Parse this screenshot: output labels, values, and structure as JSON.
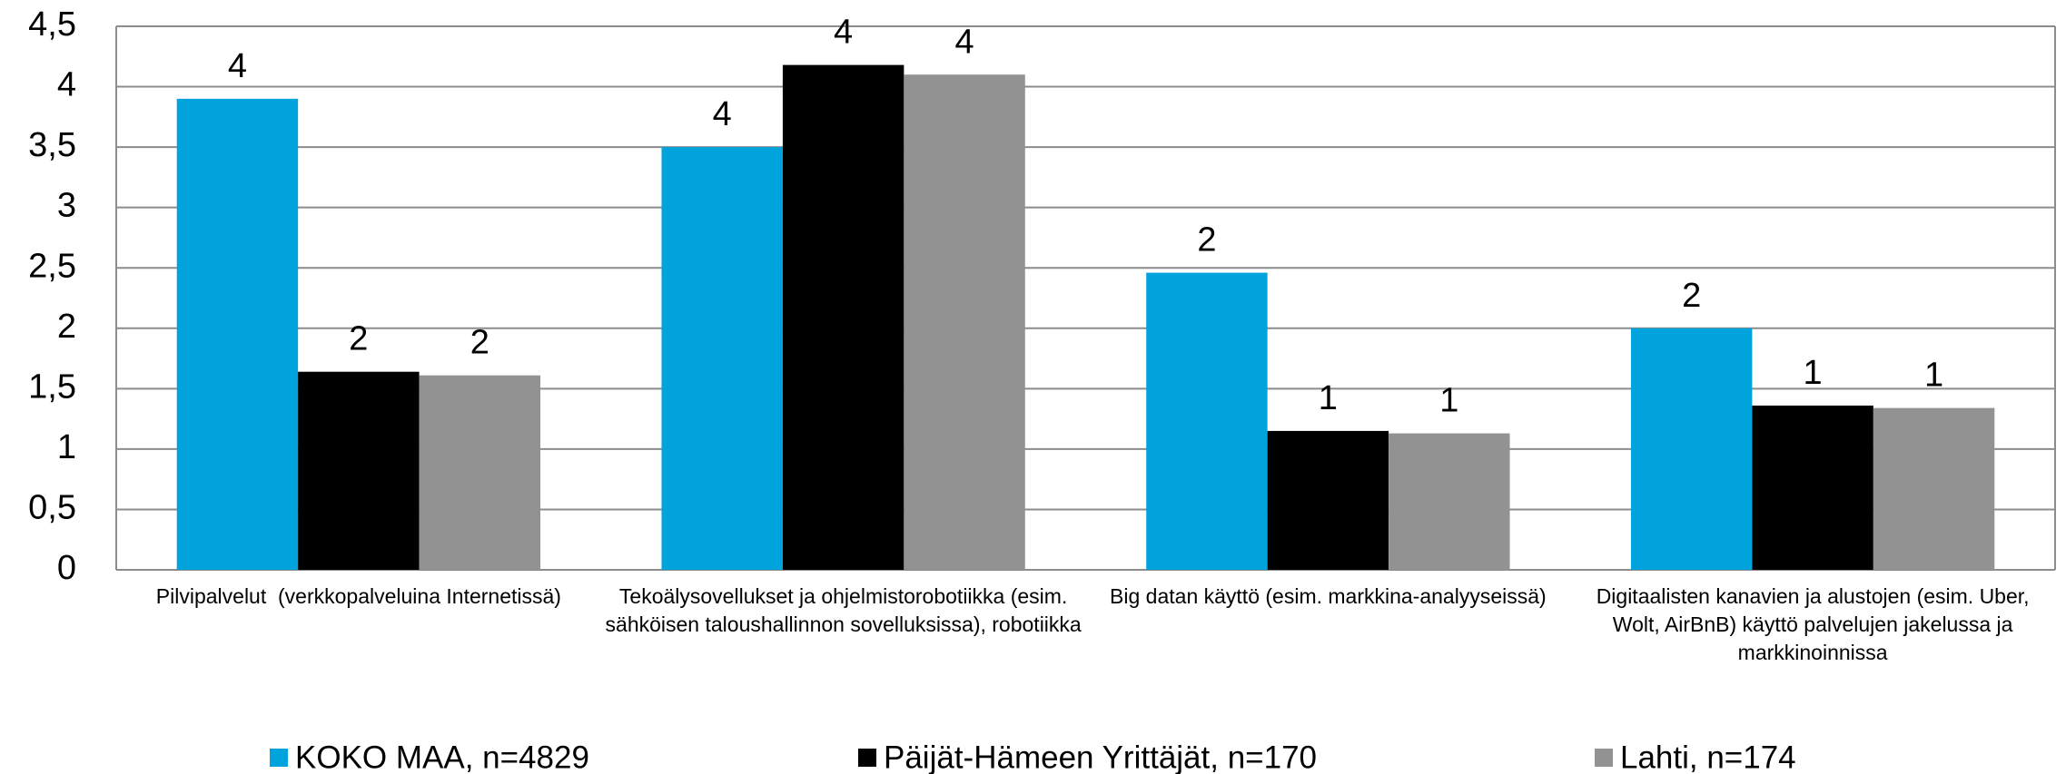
{
  "chart_data": {
    "type": "bar",
    "categories": [
      "Pilvipalvelut  (verkkopalveluina Internetissä)",
      "Tekoälysovellukset ja ohjelmistorobotiikka (esim. sähköisen taloushallinnon sovelluksissa), robotiikka",
      "Big datan käyttö (esim. markkina-analyyseissä)",
      "Digitaalisten kanavien ja alustojen (esim. Uber, Wolt, AirBnB) käyttö palvelujen jakelussa ja markkinoinnissa"
    ],
    "series": [
      {
        "name": "KOKO MAA, n=4829",
        "color": "#00a3dc",
        "values": [
          3.9,
          3.5,
          2.46,
          2.0
        ],
        "value_labels": [
          "4",
          "4",
          "2",
          "2"
        ]
      },
      {
        "name": "Päijät-Hämeen Yrittäjät, n=170",
        "color": "#000000",
        "values": [
          1.64,
          4.18,
          1.15,
          1.36
        ],
        "value_labels": [
          "2",
          "4",
          "1",
          "1"
        ]
      },
      {
        "name": "Lahti, n=174",
        "color": "#929292",
        "values": [
          1.61,
          4.1,
          1.13,
          1.34
        ],
        "value_labels": [
          "2",
          "4",
          "1",
          "1"
        ]
      }
    ],
    "ylim": [
      0,
      4.5
    ],
    "yticks": [
      0,
      {
        "value": 0.5,
        "label": "0,5"
      },
      1,
      {
        "value": 1.5,
        "label": "1,5"
      },
      2,
      {
        "value": 2.5,
        "label": "2,5"
      },
      3,
      {
        "value": 3.5,
        "label": "3,5"
      },
      4,
      {
        "value": 4.5,
        "label": "4,5"
      }
    ],
    "grid": true,
    "legend": "bottom"
  }
}
